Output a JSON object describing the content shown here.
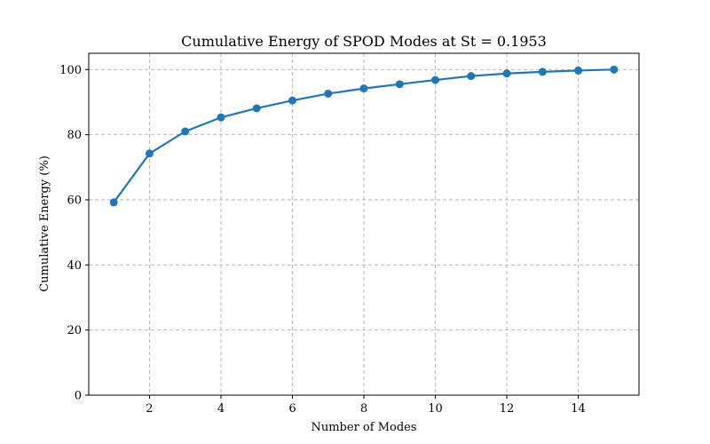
{
  "chart_data": {
    "type": "line",
    "title": "Cumulative Energy of SPOD Modes at St = 0.1953",
    "xlabel": "Number of Modes",
    "ylabel": "Cumulative Energy (%)",
    "xlim": [
      0.3,
      15.7
    ],
    "ylim": [
      0,
      105
    ],
    "xticks": [
      2,
      4,
      6,
      8,
      10,
      12,
      14
    ],
    "yticks": [
      0,
      20,
      40,
      60,
      80,
      100
    ],
    "grid": true,
    "series": [
      {
        "color": "#1f77b4",
        "marker": "circle",
        "x": [
          1,
          2,
          3,
          4,
          5,
          6,
          7,
          8,
          9,
          10,
          11,
          12,
          13,
          14,
          15
        ],
        "y": [
          59.2,
          74.2,
          81.0,
          85.3,
          88.1,
          90.5,
          92.6,
          94.2,
          95.5,
          96.8,
          98.0,
          98.8,
          99.3,
          99.7,
          100.0
        ]
      }
    ]
  }
}
